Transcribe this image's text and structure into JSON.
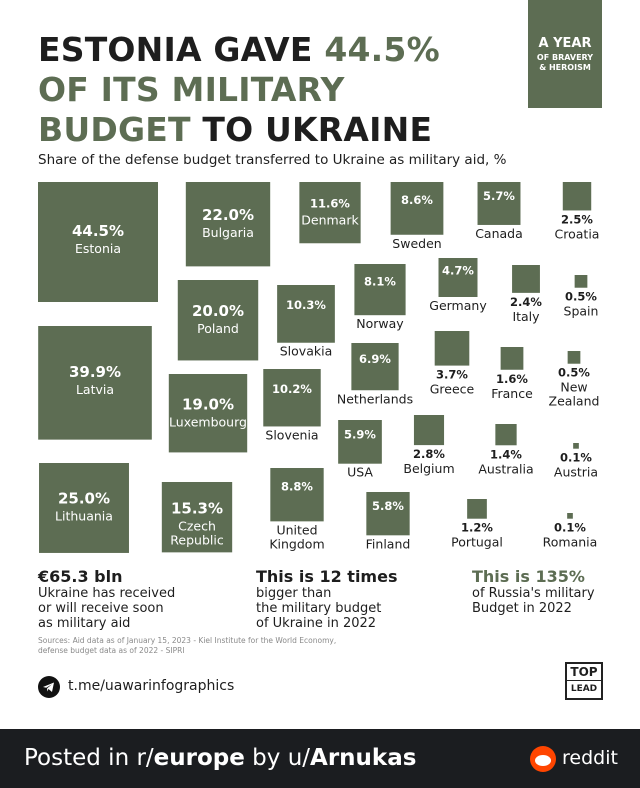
{
  "headline": {
    "line1_a": "ESTONIA GAVE ",
    "line1_b": "44.5%",
    "line2": "OF ITS MILITARY",
    "line3_a": "BUDGET ",
    "line3_b": "TO UKRAINE"
  },
  "badge": {
    "line1": "A YEAR",
    "line2": "OF BRAVERY",
    "line3": "& HEROISM"
  },
  "colors": {
    "accent": "#5d6d53",
    "text": "#1e1e1e",
    "footer_bg": "#1b1d20",
    "reddit": "#ff4500"
  },
  "chart_data": {
    "type": "proportional-squares",
    "title": "Share of the defense budget transferred to Ukraine as military aid, %",
    "unit": "%",
    "series": [
      {
        "values": [
          44.5,
          39.9,
          25.0,
          22.0,
          20.0,
          19.0,
          15.3,
          11.6,
          10.3,
          10.2,
          8.8,
          8.6,
          8.1,
          6.9,
          5.9,
          5.8,
          5.7,
          4.7,
          3.7,
          2.8,
          2.5,
          2.4,
          1.6,
          1.4,
          1.2,
          0.5,
          0.5,
          0.1,
          0.1
        ]
      }
    ],
    "categories": [
      "Estonia",
      "Latvia",
      "Lithuania",
      "Bulgaria",
      "Poland",
      "Luxembourg",
      "Czech Republic",
      "Denmark",
      "Slovakia",
      "Slovenia",
      "United Kingdom",
      "Sweden",
      "Norway",
      "Netherlands",
      "USA",
      "Finland",
      "Canada",
      "Germany",
      "Greece",
      "Belgium",
      "Croatia",
      "Italy",
      "France",
      "Australia",
      "Portugal",
      "Spain",
      "New Zealand",
      "Austria",
      "Romania"
    ],
    "items": [
      {
        "country": "Estonia",
        "value": 44.5,
        "value_label": "44.5%"
      },
      {
        "country": "Latvia",
        "value": 39.9,
        "value_label": "39.9%"
      },
      {
        "country": "Lithuania",
        "value": 25.0,
        "value_label": "25.0%"
      },
      {
        "country": "Bulgaria",
        "value": 22.0,
        "value_label": "22.0%"
      },
      {
        "country": "Poland",
        "value": 20.0,
        "value_label": "20.0%"
      },
      {
        "country": "Luxembourg",
        "value": 19.0,
        "value_label": "19.0%"
      },
      {
        "country": "Czech Republic",
        "value": 15.3,
        "value_label": "15.3%"
      },
      {
        "country": "Denmark",
        "value": 11.6,
        "value_label": "11.6%"
      },
      {
        "country": "Slovakia",
        "value": 10.3,
        "value_label": "10.3%"
      },
      {
        "country": "Slovenia",
        "value": 10.2,
        "value_label": "10.2%"
      },
      {
        "country": "United Kingdom",
        "value": 8.8,
        "value_label": "8.8%"
      },
      {
        "country": "Sweden",
        "value": 8.6,
        "value_label": "8.6%"
      },
      {
        "country": "Norway",
        "value": 8.1,
        "value_label": "8.1%"
      },
      {
        "country": "Netherlands",
        "value": 6.9,
        "value_label": "6.9%"
      },
      {
        "country": "USA",
        "value": 5.9,
        "value_label": "5.9%"
      },
      {
        "country": "Finland",
        "value": 5.8,
        "value_label": "5.8%"
      },
      {
        "country": "Canada",
        "value": 5.7,
        "value_label": "5.7%"
      },
      {
        "country": "Germany",
        "value": 4.7,
        "value_label": "4.7%"
      },
      {
        "country": "Greece",
        "value": 3.7,
        "value_label": "3.7%"
      },
      {
        "country": "Belgium",
        "value": 2.8,
        "value_label": "2.8%"
      },
      {
        "country": "Croatia",
        "value": 2.5,
        "value_label": "2.5%"
      },
      {
        "country": "Italy",
        "value": 2.4,
        "value_label": "2.4%"
      },
      {
        "country": "France",
        "value": 1.6,
        "value_label": "1.6%"
      },
      {
        "country": "Australia",
        "value": 1.4,
        "value_label": "1.4%"
      },
      {
        "country": "Portugal",
        "value": 1.2,
        "value_label": "1.2%"
      },
      {
        "country": "Spain",
        "value": 0.5,
        "value_label": "0.5%"
      },
      {
        "country": "New Zealand",
        "value": 0.5,
        "value_label": "0.5%"
      },
      {
        "country": "Austria",
        "value": 0.1,
        "value_label": "0.1%"
      },
      {
        "country": "Romania",
        "value": 0.1,
        "value_label": "0.1%"
      }
    ]
  },
  "stats": [
    {
      "big": "€65.3 bln",
      "text": [
        "Ukraine has received",
        "or will receive soon",
        "as military aid"
      ]
    },
    {
      "big": "This is 12 times",
      "text": [
        "bigger than",
        "the military budget",
        "of Ukraine in 2022"
      ]
    },
    {
      "big": "This is 135%",
      "text": [
        "of Russia's military",
        "Budget in 2022"
      ]
    }
  ],
  "sources": {
    "line1": "Sources: Aid data as of January 15, 2023 - Kiel Institute for the World Economy,",
    "line2": "defense budget data as of 2022 - SIPRI"
  },
  "telegram": {
    "icon": "telegram-icon",
    "link": "t.me/uawarinfographics"
  },
  "brand": {
    "top": "TOP",
    "lead": "LEAD"
  },
  "footer": {
    "prefix": "Posted in r/",
    "subreddit": "europe",
    "by": " by u/",
    "user": "Arnukas",
    "site": "reddit",
    "logo": "reddit-icon"
  }
}
